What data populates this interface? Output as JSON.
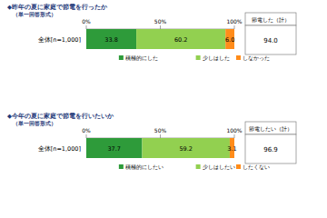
{
  "chart_data": [
    {
      "type": "bar",
      "orientation": "horizontal",
      "stacked": true,
      "data_labels": true,
      "title": "◆昨年の夏に家庭で節電を行ったか",
      "subtitle": "（単一回答形式）",
      "categories": [
        "全体[n=1,000]"
      ],
      "xlim": [
        0,
        100
      ],
      "xticks": [
        {
          "value": 0,
          "label": "0%"
        },
        {
          "value": 50,
          "label": "50%"
        },
        {
          "value": 100,
          "label": "100%"
        }
      ],
      "series": [
        {
          "name": "積極的にした",
          "color": "#2e9b3a",
          "values": [
            33.8
          ],
          "value_labels": [
            "33.8"
          ]
        },
        {
          "name": "少しはした",
          "color": "#92d050",
          "values": [
            60.2
          ],
          "value_labels": [
            "60.2"
          ]
        },
        {
          "name": "しなかった",
          "color": "#ff8c1a",
          "values": [
            6.0
          ],
          "value_labels": [
            "6.0"
          ]
        }
      ],
      "total": {
        "label": "節電した（計）",
        "values": [
          94.0
        ],
        "value_labels": [
          "94.0"
        ]
      }
    },
    {
      "type": "bar",
      "orientation": "horizontal",
      "stacked": true,
      "data_labels": true,
      "title": "◆今年の夏に家庭で節電を行いたいか",
      "subtitle": "（単一回答形式）",
      "categories": [
        "全体[n=1,000]"
      ],
      "xlim": [
        0,
        100
      ],
      "xticks": [
        {
          "value": 0,
          "label": "0%"
        },
        {
          "value": 50,
          "label": "50%"
        },
        {
          "value": 100,
          "label": "100%"
        }
      ],
      "series": [
        {
          "name": "積極的にしたい",
          "color": "#2e9b3a",
          "values": [
            37.7
          ],
          "value_labels": [
            "37.7"
          ]
        },
        {
          "name": "少しはしたい",
          "color": "#92d050",
          "values": [
            59.2
          ],
          "value_labels": [
            "59.2"
          ]
        },
        {
          "name": "したくない",
          "color": "#ff8c1a",
          "values": [
            3.1
          ],
          "value_labels": [
            "3.1"
          ]
        }
      ],
      "total": {
        "label": "節電したい（計）",
        "values": [
          96.9
        ],
        "value_labels": [
          "96.9"
        ]
      }
    }
  ]
}
